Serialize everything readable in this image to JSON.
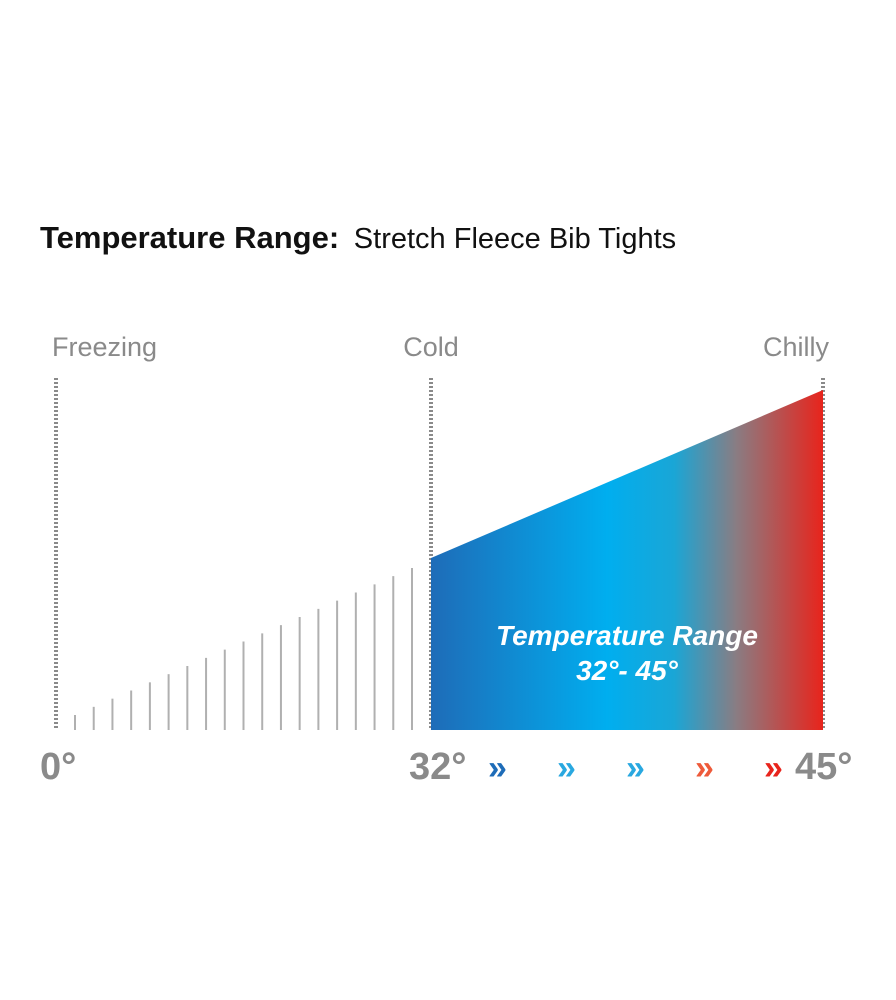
{
  "header": {
    "title_bold": "Temperature Range:",
    "title_rest": "Stretch Fleece Bib Tights"
  },
  "zone_labels": [
    "Freezing",
    "Cold",
    "Chilly"
  ],
  "scale_labels": [
    "0°",
    "32°",
    "45°"
  ],
  "range": {
    "label": "Temperature Range",
    "value": "32°- 45°"
  }
}
